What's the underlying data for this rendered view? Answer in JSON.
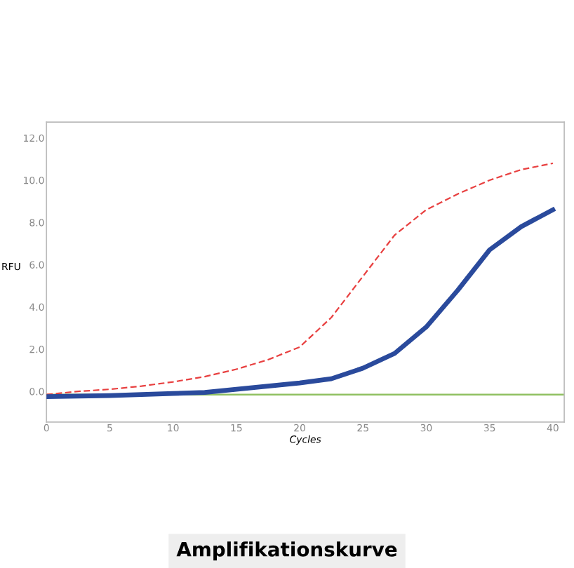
{
  "chart_data": {
    "type": "line",
    "title": "Amplifikationskurve",
    "xlabel": "Cycles",
    "ylabel": "RFU",
    "xlim": [
      0,
      40.9
    ],
    "ylim": [
      -1.45,
      12.75
    ],
    "xticks": [
      0,
      5,
      10,
      15,
      20,
      25,
      30,
      35,
      40
    ],
    "yticks": [
      {
        "value": 0,
        "label": "0.0"
      },
      {
        "value": 2,
        "label": "2.0"
      },
      {
        "value": 4,
        "label": "4.0"
      },
      {
        "value": 6,
        "label": "6.0"
      },
      {
        "value": 8,
        "label": "8.0"
      },
      {
        "value": 10,
        "label": "10.0"
      },
      {
        "value": 12,
        "label": "12.0"
      }
    ],
    "grid": false,
    "legend": false,
    "ref_lines": [
      {
        "axis": "y",
        "value": -0.15,
        "color": "#8fc060",
        "line_style": "solid"
      }
    ],
    "series": [
      {
        "color": "#e84040",
        "line_style": "dashed",
        "x": [
          0,
          2.5,
          5,
          7.5,
          10,
          12.5,
          15,
          17.5,
          20,
          22.5,
          25,
          27.5,
          30,
          32.5,
          35,
          37.5,
          40
        ],
        "values": [
          -0.15,
          0.0,
          0.1,
          0.25,
          0.45,
          0.7,
          1.05,
          1.5,
          2.1,
          3.5,
          5.45,
          7.4,
          8.6,
          9.35,
          10.0,
          10.5,
          10.8
        ]
      },
      {
        "color": "#2a4a9c",
        "line_style": "solid",
        "x": [
          0,
          5,
          10,
          12.5,
          15,
          17.5,
          20,
          22.5,
          25,
          27.5,
          30,
          32.5,
          35,
          37.5,
          40
        ],
        "values": [
          -0.25,
          -0.2,
          -0.1,
          -0.05,
          0.1,
          0.25,
          0.4,
          0.6,
          1.1,
          1.8,
          3.05,
          4.8,
          6.7,
          7.8,
          8.6
        ]
      }
    ]
  }
}
